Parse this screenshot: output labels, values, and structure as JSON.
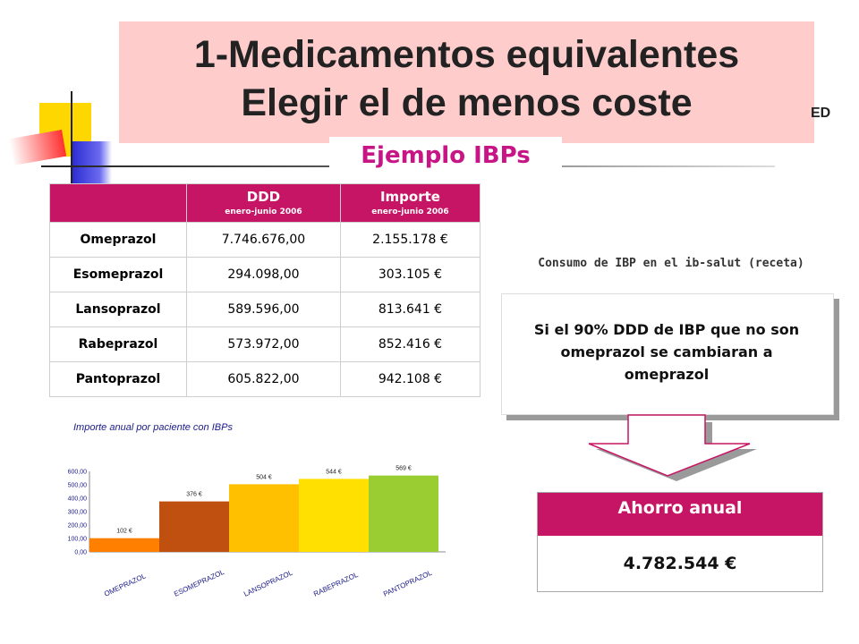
{
  "title": {
    "line1": "1-Medicamentos equivalentes",
    "line2": "Elegir el de menos coste",
    "cut_text": "ED"
  },
  "subtitle": "Ejemplo IBPs",
  "table": {
    "headers": [
      {
        "main": "",
        "sub": ""
      },
      {
        "main": "DDD",
        "sub": "enero-junio 2006"
      },
      {
        "main": "Importe",
        "sub": "enero-junio 2006"
      }
    ],
    "rows": [
      {
        "name": "Omeprazol",
        "ddd": "7.746.676,00",
        "importe": "2.155.178 €"
      },
      {
        "name": "Esomeprazol",
        "ddd": "294.098,00",
        "importe": "303.105 €"
      },
      {
        "name": "Lansoprazol",
        "ddd": "589.596,00",
        "importe": "813.641 €"
      },
      {
        "name": "Rabeprazol",
        "ddd": "573.972,00",
        "importe": "852.416 €"
      },
      {
        "name": "Pantoprazol",
        "ddd": "605.822,00",
        "importe": "942.108 €"
      }
    ]
  },
  "consumo_label": "Consumo de IBP en el ib-salut (receta)",
  "callout": {
    "line1": "Si el 90% DDD de IBP que no son",
    "line2": "omeprazol se cambiaran a",
    "line3": "omeprazol"
  },
  "ahorro": {
    "label": "Ahorro anual",
    "value": "4.782.544 €"
  },
  "colors": {
    "accent": "#c71565",
    "title_bg": "#ffcccc",
    "subtitle": "#c71585"
  },
  "chart_data": {
    "type": "bar",
    "title": "Importe anual por paciente con IBPs",
    "categories": [
      "OMEPRAZOL",
      "ESOMEPRAZOL",
      "LANSOPRAZOL",
      "RABEPRAZOL",
      "PANTOPRAZOL"
    ],
    "values": [
      102,
      376,
      504,
      544,
      569
    ],
    "value_labels": [
      "102 €",
      "376 €",
      "504 €",
      "544 €",
      "569 €"
    ],
    "ylim": [
      0,
      600
    ],
    "yticks": [
      "0,00",
      "100,00",
      "200,00",
      "300,00",
      "400,00",
      "500,00",
      "600,00"
    ],
    "bar_colors": [
      "#ff7f00",
      "#c05010",
      "#ffc000",
      "#ffe000",
      "#9acd32"
    ],
    "grid": false
  }
}
